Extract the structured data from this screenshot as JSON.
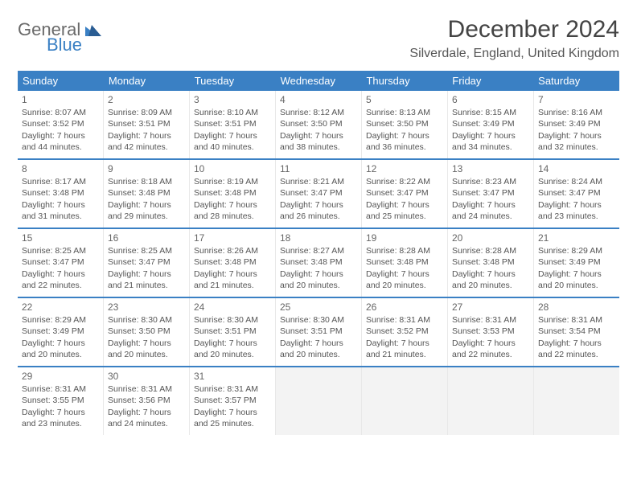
{
  "logo": {
    "general": "General",
    "blue": "Blue"
  },
  "title": "December 2024",
  "location": "Silverdale, England, United Kingdom",
  "colors": {
    "header_bg": "#3a80c4",
    "header_text": "#ffffff",
    "row_divider": "#3a80c4",
    "cell_border": "#e8e8e8",
    "empty_bg": "#f3f3f3",
    "text": "#555555",
    "page_bg": "#ffffff"
  },
  "day_names": [
    "Sunday",
    "Monday",
    "Tuesday",
    "Wednesday",
    "Thursday",
    "Friday",
    "Saturday"
  ],
  "weeks": [
    [
      {
        "num": "1",
        "sunrise": "Sunrise: 8:07 AM",
        "sunset": "Sunset: 3:52 PM",
        "day1": "Daylight: 7 hours",
        "day2": "and 44 minutes."
      },
      {
        "num": "2",
        "sunrise": "Sunrise: 8:09 AM",
        "sunset": "Sunset: 3:51 PM",
        "day1": "Daylight: 7 hours",
        "day2": "and 42 minutes."
      },
      {
        "num": "3",
        "sunrise": "Sunrise: 8:10 AM",
        "sunset": "Sunset: 3:51 PM",
        "day1": "Daylight: 7 hours",
        "day2": "and 40 minutes."
      },
      {
        "num": "4",
        "sunrise": "Sunrise: 8:12 AM",
        "sunset": "Sunset: 3:50 PM",
        "day1": "Daylight: 7 hours",
        "day2": "and 38 minutes."
      },
      {
        "num": "5",
        "sunrise": "Sunrise: 8:13 AM",
        "sunset": "Sunset: 3:50 PM",
        "day1": "Daylight: 7 hours",
        "day2": "and 36 minutes."
      },
      {
        "num": "6",
        "sunrise": "Sunrise: 8:15 AM",
        "sunset": "Sunset: 3:49 PM",
        "day1": "Daylight: 7 hours",
        "day2": "and 34 minutes."
      },
      {
        "num": "7",
        "sunrise": "Sunrise: 8:16 AM",
        "sunset": "Sunset: 3:49 PM",
        "day1": "Daylight: 7 hours",
        "day2": "and 32 minutes."
      }
    ],
    [
      {
        "num": "8",
        "sunrise": "Sunrise: 8:17 AM",
        "sunset": "Sunset: 3:48 PM",
        "day1": "Daylight: 7 hours",
        "day2": "and 31 minutes."
      },
      {
        "num": "9",
        "sunrise": "Sunrise: 8:18 AM",
        "sunset": "Sunset: 3:48 PM",
        "day1": "Daylight: 7 hours",
        "day2": "and 29 minutes."
      },
      {
        "num": "10",
        "sunrise": "Sunrise: 8:19 AM",
        "sunset": "Sunset: 3:48 PM",
        "day1": "Daylight: 7 hours",
        "day2": "and 28 minutes."
      },
      {
        "num": "11",
        "sunrise": "Sunrise: 8:21 AM",
        "sunset": "Sunset: 3:47 PM",
        "day1": "Daylight: 7 hours",
        "day2": "and 26 minutes."
      },
      {
        "num": "12",
        "sunrise": "Sunrise: 8:22 AM",
        "sunset": "Sunset: 3:47 PM",
        "day1": "Daylight: 7 hours",
        "day2": "and 25 minutes."
      },
      {
        "num": "13",
        "sunrise": "Sunrise: 8:23 AM",
        "sunset": "Sunset: 3:47 PM",
        "day1": "Daylight: 7 hours",
        "day2": "and 24 minutes."
      },
      {
        "num": "14",
        "sunrise": "Sunrise: 8:24 AM",
        "sunset": "Sunset: 3:47 PM",
        "day1": "Daylight: 7 hours",
        "day2": "and 23 minutes."
      }
    ],
    [
      {
        "num": "15",
        "sunrise": "Sunrise: 8:25 AM",
        "sunset": "Sunset: 3:47 PM",
        "day1": "Daylight: 7 hours",
        "day2": "and 22 minutes."
      },
      {
        "num": "16",
        "sunrise": "Sunrise: 8:25 AM",
        "sunset": "Sunset: 3:47 PM",
        "day1": "Daylight: 7 hours",
        "day2": "and 21 minutes."
      },
      {
        "num": "17",
        "sunrise": "Sunrise: 8:26 AM",
        "sunset": "Sunset: 3:48 PM",
        "day1": "Daylight: 7 hours",
        "day2": "and 21 minutes."
      },
      {
        "num": "18",
        "sunrise": "Sunrise: 8:27 AM",
        "sunset": "Sunset: 3:48 PM",
        "day1": "Daylight: 7 hours",
        "day2": "and 20 minutes."
      },
      {
        "num": "19",
        "sunrise": "Sunrise: 8:28 AM",
        "sunset": "Sunset: 3:48 PM",
        "day1": "Daylight: 7 hours",
        "day2": "and 20 minutes."
      },
      {
        "num": "20",
        "sunrise": "Sunrise: 8:28 AM",
        "sunset": "Sunset: 3:48 PM",
        "day1": "Daylight: 7 hours",
        "day2": "and 20 minutes."
      },
      {
        "num": "21",
        "sunrise": "Sunrise: 8:29 AM",
        "sunset": "Sunset: 3:49 PM",
        "day1": "Daylight: 7 hours",
        "day2": "and 20 minutes."
      }
    ],
    [
      {
        "num": "22",
        "sunrise": "Sunrise: 8:29 AM",
        "sunset": "Sunset: 3:49 PM",
        "day1": "Daylight: 7 hours",
        "day2": "and 20 minutes."
      },
      {
        "num": "23",
        "sunrise": "Sunrise: 8:30 AM",
        "sunset": "Sunset: 3:50 PM",
        "day1": "Daylight: 7 hours",
        "day2": "and 20 minutes."
      },
      {
        "num": "24",
        "sunrise": "Sunrise: 8:30 AM",
        "sunset": "Sunset: 3:51 PM",
        "day1": "Daylight: 7 hours",
        "day2": "and 20 minutes."
      },
      {
        "num": "25",
        "sunrise": "Sunrise: 8:30 AM",
        "sunset": "Sunset: 3:51 PM",
        "day1": "Daylight: 7 hours",
        "day2": "and 20 minutes."
      },
      {
        "num": "26",
        "sunrise": "Sunrise: 8:31 AM",
        "sunset": "Sunset: 3:52 PM",
        "day1": "Daylight: 7 hours",
        "day2": "and 21 minutes."
      },
      {
        "num": "27",
        "sunrise": "Sunrise: 8:31 AM",
        "sunset": "Sunset: 3:53 PM",
        "day1": "Daylight: 7 hours",
        "day2": "and 22 minutes."
      },
      {
        "num": "28",
        "sunrise": "Sunrise: 8:31 AM",
        "sunset": "Sunset: 3:54 PM",
        "day1": "Daylight: 7 hours",
        "day2": "and 22 minutes."
      }
    ],
    [
      {
        "num": "29",
        "sunrise": "Sunrise: 8:31 AM",
        "sunset": "Sunset: 3:55 PM",
        "day1": "Daylight: 7 hours",
        "day2": "and 23 minutes."
      },
      {
        "num": "30",
        "sunrise": "Sunrise: 8:31 AM",
        "sunset": "Sunset: 3:56 PM",
        "day1": "Daylight: 7 hours",
        "day2": "and 24 minutes."
      },
      {
        "num": "31",
        "sunrise": "Sunrise: 8:31 AM",
        "sunset": "Sunset: 3:57 PM",
        "day1": "Daylight: 7 hours",
        "day2": "and 25 minutes."
      },
      {
        "empty": true
      },
      {
        "empty": true
      },
      {
        "empty": true
      },
      {
        "empty": true
      }
    ]
  ]
}
